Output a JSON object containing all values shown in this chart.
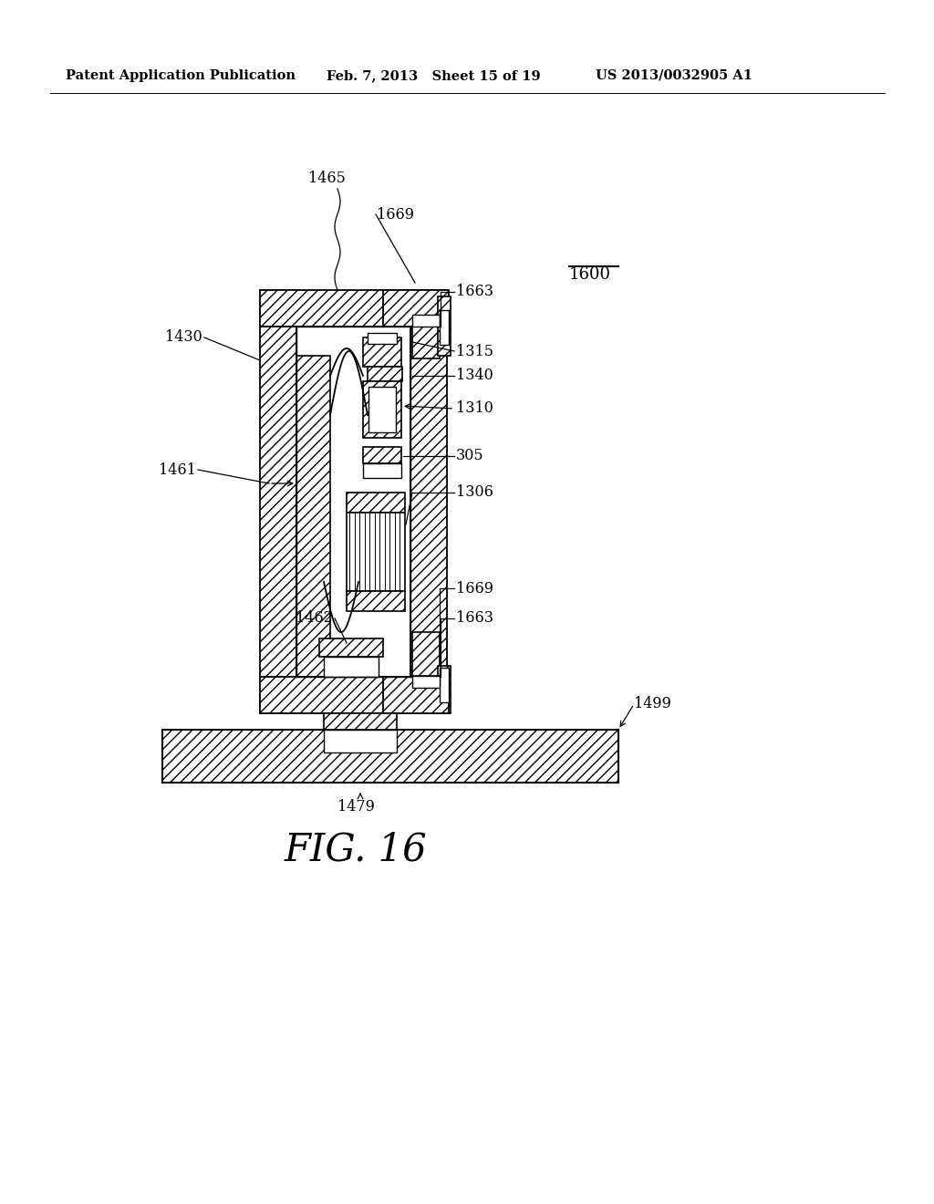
{
  "bg_color": "#ffffff",
  "line_color": "#000000",
  "header_left": "Patent Application Publication",
  "header_mid": "Feb. 7, 2013   Sheet 15 of 19",
  "header_right": "US 2013/0032905 A1",
  "fig_label": "FIG. 16",
  "ref_num": "1600"
}
